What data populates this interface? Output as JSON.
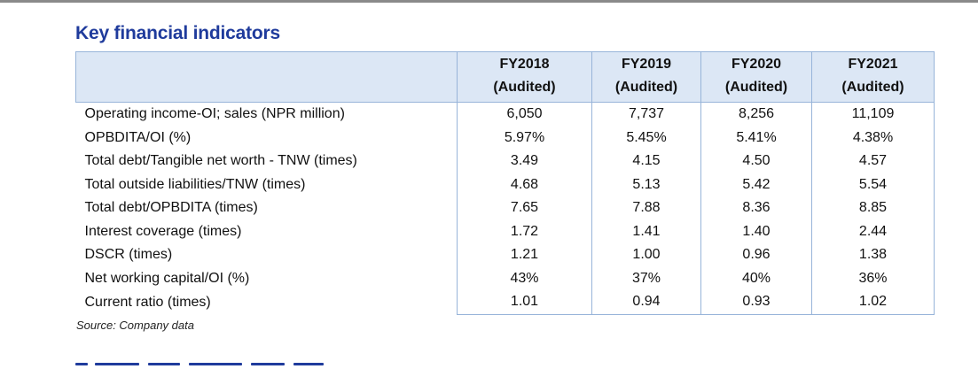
{
  "section_title": "Key financial indicators",
  "table": {
    "columns": [
      {
        "year": "FY2018",
        "status": "(Audited)"
      },
      {
        "year": "FY2019",
        "status": "(Audited)"
      },
      {
        "year": "FY2020",
        "status": "(Audited)"
      },
      {
        "year": "FY2021",
        "status": "(Audited)"
      }
    ],
    "rows": [
      {
        "label": "Operating income-OI; sales (NPR million)",
        "values": [
          "6,050",
          "7,737",
          "8,256",
          "11,109"
        ]
      },
      {
        "label": "OPBDITA/OI (%)",
        "values": [
          "5.97%",
          "5.45%",
          "5.41%",
          "4.38%"
        ]
      },
      {
        "label": "Total debt/Tangible net worth - TNW (times)",
        "values": [
          "3.49",
          "4.15",
          "4.50",
          "4.57"
        ]
      },
      {
        "label": "Total outside liabilities/TNW (times)",
        "values": [
          "4.68",
          "5.13",
          "5.42",
          "5.54"
        ]
      },
      {
        "label": "Total debt/OPBDITA (times)",
        "values": [
          "7.65",
          "7.88",
          "8.36",
          "8.85"
        ]
      },
      {
        "label": "Interest coverage (times)",
        "values": [
          "1.72",
          "1.41",
          "1.40",
          "2.44"
        ]
      },
      {
        "label": "DSCR (times)",
        "values": [
          "1.21",
          "1.00",
          "0.96",
          "1.38"
        ]
      },
      {
        "label": "Net working capital/OI (%)",
        "values": [
          "43%",
          "37%",
          "40%",
          "36%"
        ]
      },
      {
        "label": "Current ratio (times)",
        "values": [
          "1.01",
          "0.94",
          "0.93",
          "1.02"
        ]
      }
    ]
  },
  "source_note": "Source: Company data",
  "colors": {
    "heading": "#1f3b9c",
    "header_fill": "#dce7f5",
    "grid_line": "#97b4d9"
  }
}
